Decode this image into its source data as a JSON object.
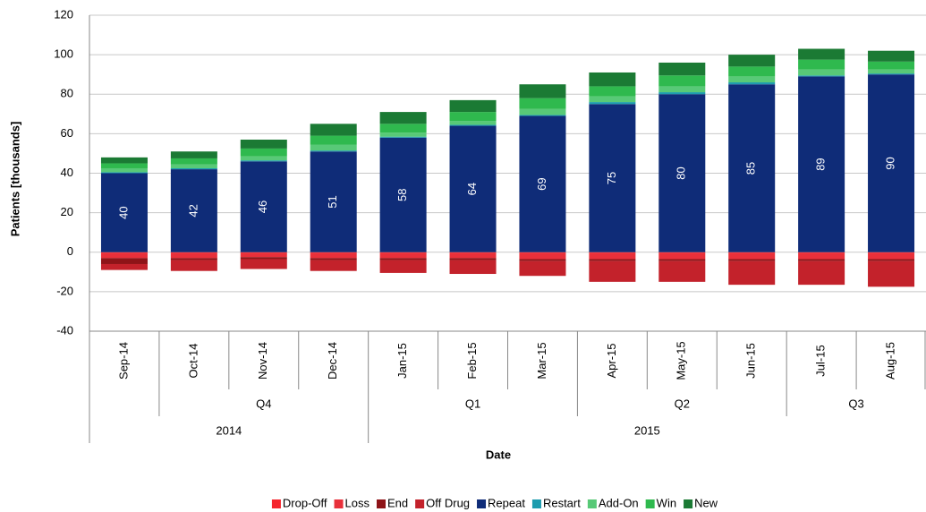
{
  "chart_data": {
    "type": "stacked_bar",
    "x_label": "Date",
    "y_label": "Patients [thousands]",
    "categories": [
      "Sep-14",
      "Oct-14",
      "Nov-14",
      "Dec-14",
      "Jan-15",
      "Feb-15",
      "Mar-15",
      "Apr-15",
      "May-15",
      "Jun-15",
      "Jul-15",
      "Aug-15"
    ],
    "quarters": [
      null,
      "Q4",
      "Q4",
      "Q4",
      "Q1",
      "Q1",
      "Q1",
      "Q2",
      "Q2",
      "Q2",
      "Q3",
      "Q3"
    ],
    "years": [
      "2014",
      "2014",
      "2014",
      "2014",
      "2015",
      "2015",
      "2015",
      "2015",
      "2015",
      "2015",
      "2015",
      "2015"
    ],
    "ylim": [
      -40,
      120
    ],
    "yticks": [
      -40,
      -20,
      0,
      20,
      40,
      60,
      80,
      100,
      120
    ],
    "grid": true,
    "legend": "bottom",
    "series": [
      {
        "name": "Drop-Off",
        "color": "#f5242c",
        "values": [
          -0.5,
          -0.5,
          -0.5,
          -0.5,
          -0.5,
          -0.5,
          -0.5,
          -0.5,
          -0.5,
          -0.5,
          -0.5,
          -0.5
        ]
      },
      {
        "name": "Loss",
        "color": "#e8303a",
        "values": [
          -2.5,
          -2.5,
          -2,
          -2.5,
          -2.5,
          -2.5,
          -3,
          -3,
          -3,
          -3,
          -3,
          -3
        ]
      },
      {
        "name": "End",
        "color": "#8e1418",
        "values": [
          -3,
          -1,
          -1,
          -1,
          -1,
          -1,
          -1,
          -1,
          -1,
          -1,
          -1,
          -1
        ]
      },
      {
        "name": "Off Drug",
        "color": "#c3222b",
        "values": [
          -3,
          -5.5,
          -5,
          -5.5,
          -6.5,
          -7,
          -7.5,
          -10.5,
          -10.5,
          -12,
          -12,
          -13
        ]
      },
      {
        "name": "Repeat",
        "color": "#0f2c78",
        "values": [
          40,
          42,
          46,
          51,
          58,
          64,
          69,
          75,
          80,
          85,
          89,
          90
        ]
      },
      {
        "name": "Restart",
        "color": "#1d9cae",
        "values": [
          0.5,
          0.5,
          0.5,
          0.5,
          0.5,
          0.5,
          0.5,
          1,
          1,
          1,
          0.5,
          0.5
        ]
      },
      {
        "name": "Add-On",
        "color": "#58c977",
        "values": [
          2,
          2,
          2,
          3,
          2,
          2,
          3,
          3,
          3,
          3,
          3,
          2
        ]
      },
      {
        "name": "Win",
        "color": "#2fb94e",
        "values": [
          2.5,
          3,
          4,
          4.5,
          4.5,
          4.5,
          5.5,
          5,
          5.5,
          5,
          5,
          4
        ]
      },
      {
        "name": "New",
        "color": "#1b7a34",
        "values": [
          3,
          3.5,
          4.5,
          6,
          6,
          6,
          7,
          7,
          6.5,
          6,
          5.5,
          5.5
        ]
      }
    ],
    "labeled_series": 4
  }
}
